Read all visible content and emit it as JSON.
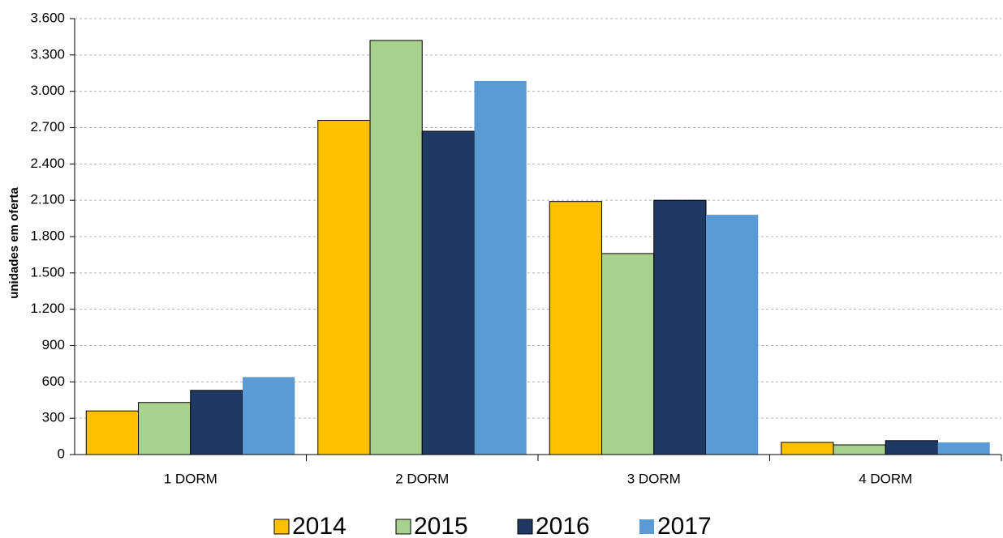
{
  "chart_data": {
    "type": "bar",
    "y_label": "unidades em oferta",
    "categories": [
      "1 DORM",
      "2 DORM",
      "3 DORM",
      "4 DORM"
    ],
    "series": [
      {
        "name": "2014",
        "color": "#ffc000",
        "values": [
          360,
          2760,
          2090,
          100
        ]
      },
      {
        "name": "2015",
        "color": "#a9d18e",
        "values": [
          430,
          3420,
          1660,
          80
        ]
      },
      {
        "name": "2016",
        "color": "#203864",
        "values": [
          530,
          2670,
          2100,
          115
        ]
      },
      {
        "name": "2017",
        "color": "#5b9bd5",
        "values": [
          640,
          3085,
          1980,
          100
        ]
      }
    ],
    "ylim": [
      0,
      3600
    ],
    "yticks": [
      0,
      300,
      600,
      900,
      {
        "value": 1200,
        "label": "1.200"
      },
      {
        "value": 1500,
        "label": "1.500"
      },
      {
        "value": 1800,
        "label": "1.800"
      },
      {
        "value": 2100,
        "label": "2.100"
      },
      {
        "value": 2400,
        "label": "2.400"
      },
      {
        "value": 2700,
        "label": "2.700"
      },
      {
        "value": 3000,
        "label": "3.000"
      },
      {
        "value": 3300,
        "label": "3.300"
      },
      {
        "value": 3600,
        "label": "3.600"
      }
    ],
    "grid": true
  }
}
